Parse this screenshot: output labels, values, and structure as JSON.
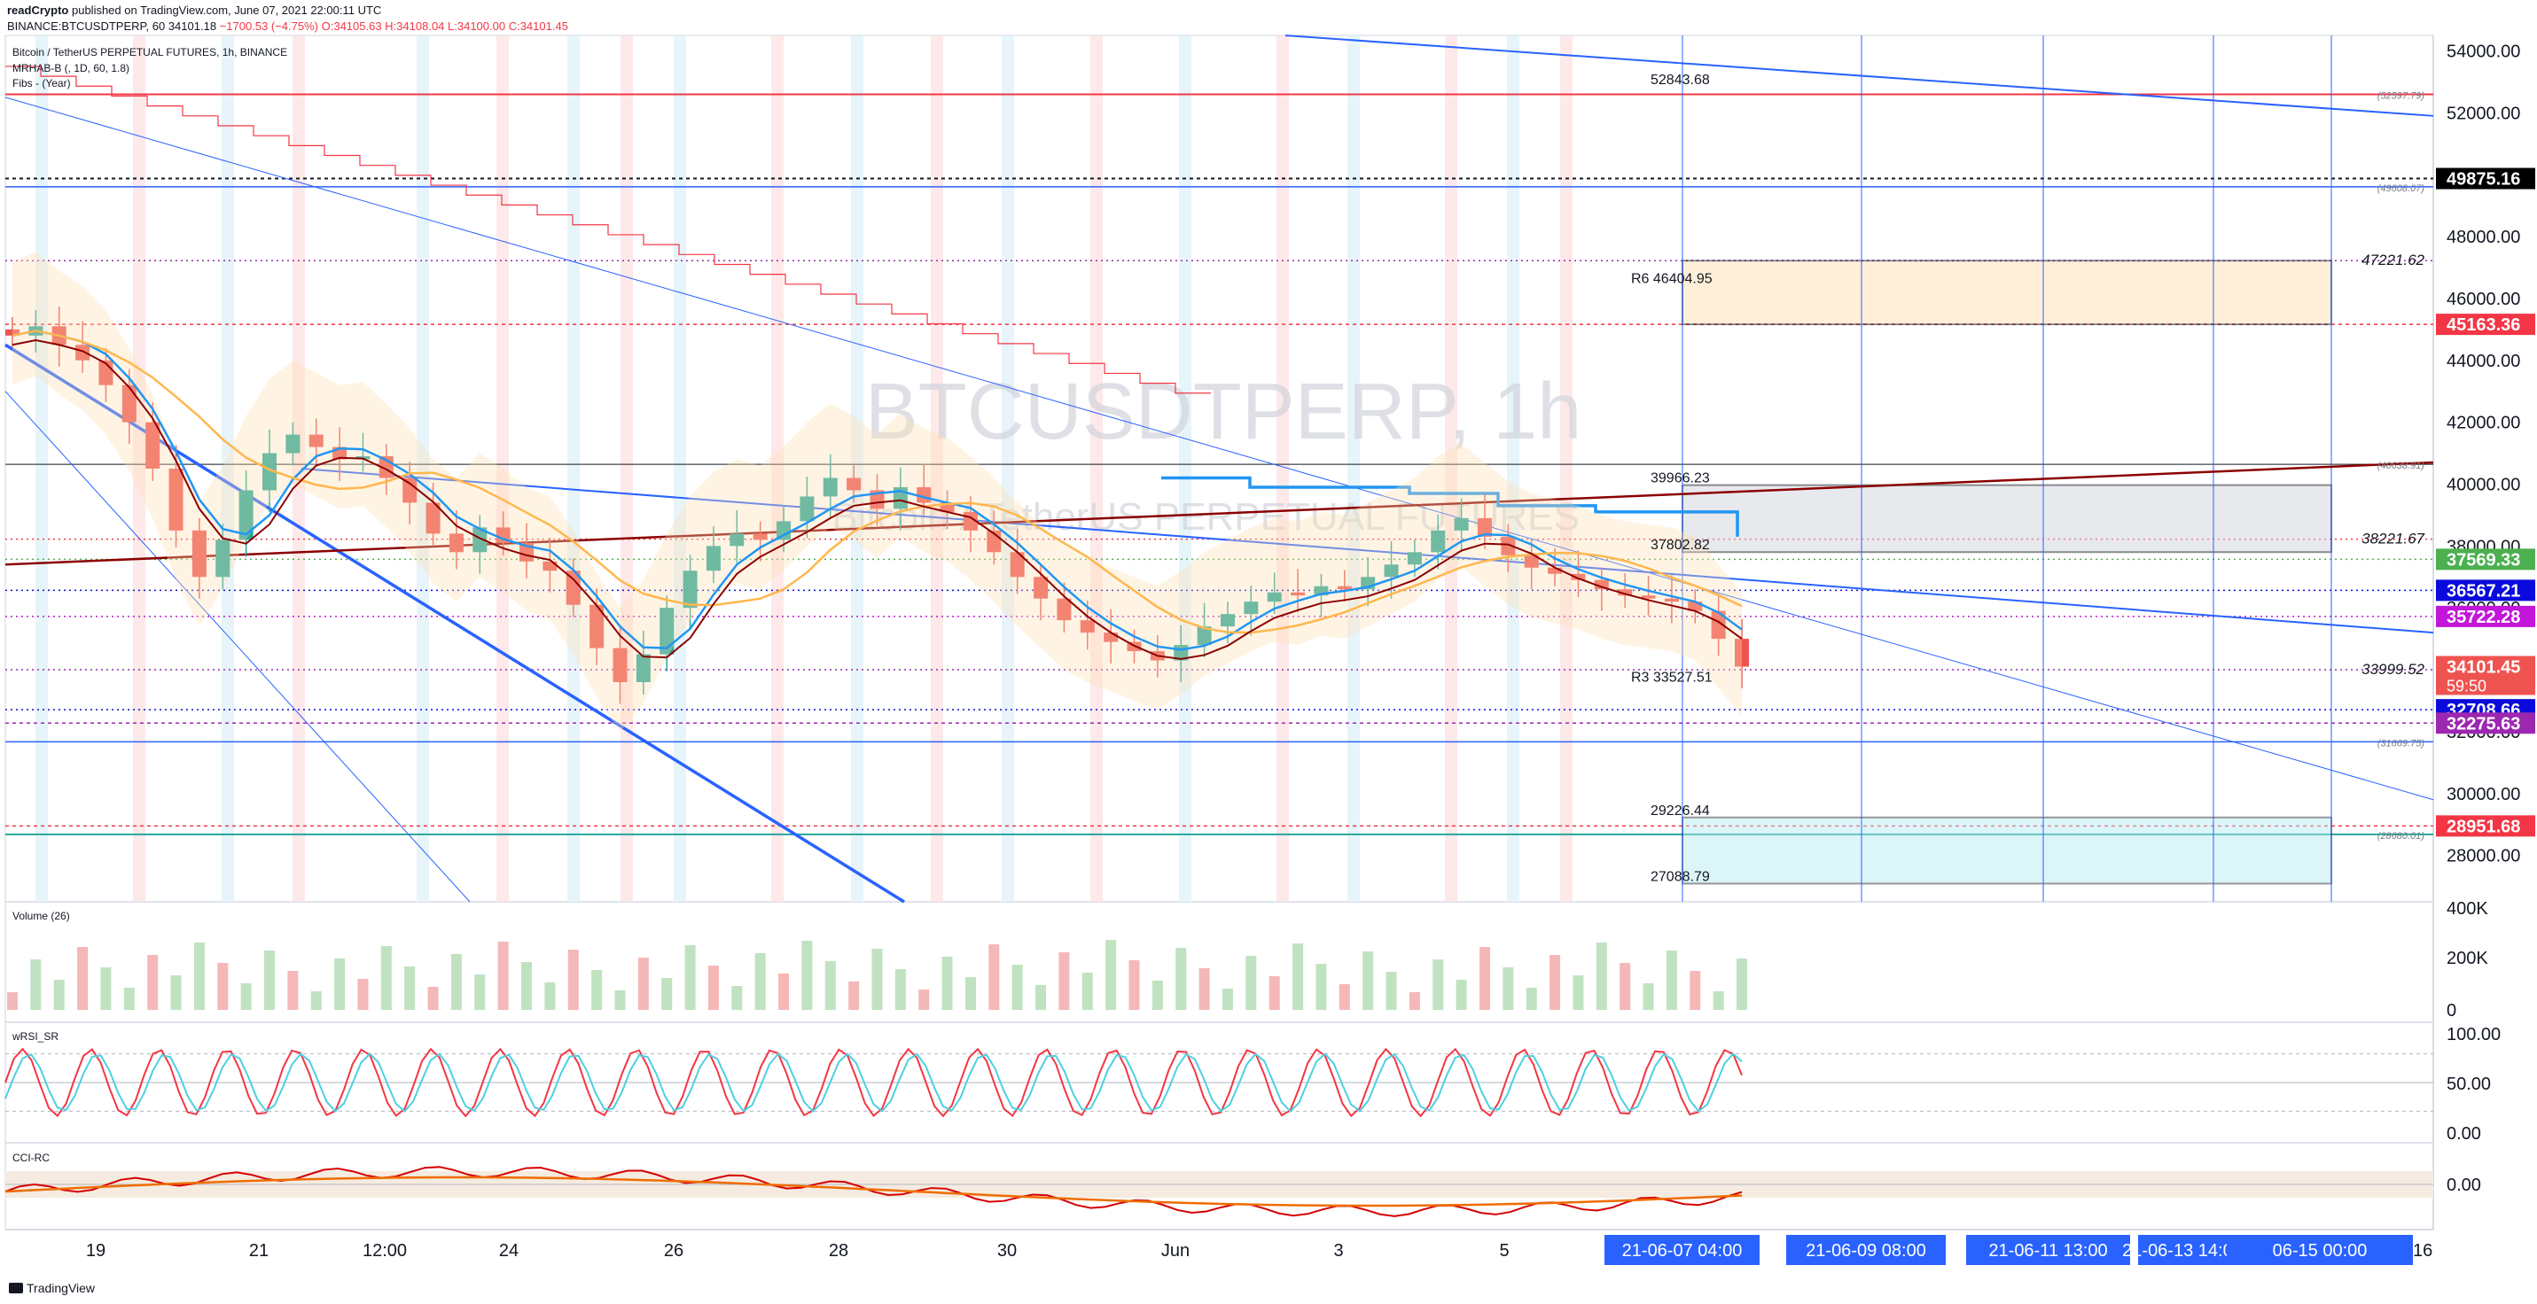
{
  "header": {
    "publisher": "readCrypto",
    "publish_text": "published on TradingView.com, June 07, 2021 22:00:11 UTC",
    "symbol_line": "BINANCE:BTCUSDTPERP, 60",
    "last": "34101.18",
    "change": "−1700.53 (−4.75%)",
    "ohlc": "O:34105.63 H:34108.04 L:34100.00 C:34101.45"
  },
  "legend": {
    "title": "Bitcoin / TetherUS PERPETUAL FUTURES, 1h, BINANCE",
    "indicator1": "MRHAB-B (, 1D, 60, 1.8)",
    "indicator2": "Fibs - (Year)"
  },
  "watermark": {
    "symbol": "BTCUSDTPERP, 1h",
    "name": "Bitcoin / TetherUS PERPETUAL FUTURES"
  },
  "panes": {
    "volume": "Volume (26)",
    "rsi": "wRSI_SR",
    "cci": "CCI-RC"
  },
  "footer": {
    "brand": "TradingView"
  },
  "colors": {
    "up": "#26a69a",
    "down": "#ef5350",
    "blue_line": "#2962ff",
    "red_line": "#f23645",
    "dark_red_line": "#8b0000",
    "box_dark": "#131722"
  },
  "chart_data": {
    "type": "candlestick",
    "symbol": "BTCUSDTPERP",
    "timeframe": "1h",
    "ylim": [
      26500,
      54500
    ],
    "y_ticks": [
      "28000.00",
      "30000.00",
      "32000.00",
      "34000.00",
      "36000.00",
      "38000.00",
      "40000.00",
      "42000.00",
      "44000.00",
      "46000.00",
      "48000.00",
      "50000.00",
      "52000.00",
      "54000.00"
    ],
    "x_ticks": [
      "19",
      "21",
      "12:00",
      "24",
      "26",
      "28",
      "30",
      "Jun",
      "3",
      "5"
    ],
    "time_labels": [
      "21-06-07  04:00",
      "21-06-09  08:00",
      "21-06-11  13:00",
      "21-06-13  14:00",
      "06-15  00:00",
      "16"
    ],
    "price_tags": [
      {
        "value": 49875.16,
        "label": "49875.16",
        "bg": "#000000"
      },
      {
        "value": 45163.36,
        "label": "45163.36",
        "bg": "#f23645"
      },
      {
        "value": 37569.33,
        "label": "37569.33",
        "bg": "#4caf50"
      },
      {
        "value": 36567.21,
        "label": "36567.21",
        "bg": "#0a0adc"
      },
      {
        "value": 35722.28,
        "label": "35722.28",
        "bg": "#c217d8"
      },
      {
        "value": 34101.45,
        "label": "34101.45",
        "sub": "59:50",
        "bg": "#ef5350"
      },
      {
        "value": 32708.66,
        "label": "32708.66",
        "bg": "#0a0adc"
      },
      {
        "value": 32275.63,
        "label": "32275.63",
        "bg": "#9c27b0"
      },
      {
        "value": 28951.68,
        "label": "28951.68",
        "bg": "#f23645"
      }
    ],
    "levels": [
      {
        "value": 52843.68,
        "label": "52843.68"
      },
      {
        "value": 46404.95,
        "label": "R6 46404.95"
      },
      {
        "value": 39966.23,
        "label": "39966.23"
      },
      {
        "value": 37802.82,
        "label": "37802.82"
      },
      {
        "value": 33527.51,
        "label": "R3 33527.51"
      },
      {
        "value": 29226.44,
        "label": "29226.44"
      },
      {
        "value": 27088.79,
        "label": "27088.79"
      }
    ],
    "axis_notes": [
      {
        "value": 52597.79,
        "label": "(52597.79)"
      },
      {
        "value": 49608.07,
        "label": "(49608.07)"
      },
      {
        "value": 47221.62,
        "label": "47221.62"
      },
      {
        "value": 40638.91,
        "label": "(40638.91)"
      },
      {
        "value": 38221.67,
        "label": "38221.67"
      },
      {
        "value": 33999.52,
        "label": "33999.52"
      },
      {
        "value": 31669.75,
        "label": "(31669.75)"
      },
      {
        "value": 28680.01,
        "label": "(28680.01)"
      }
    ],
    "closes": [
      44800,
      45100,
      44500,
      44000,
      43200,
      42000,
      40500,
      38500,
      37000,
      38200,
      39800,
      41000,
      41600,
      41200,
      40800,
      40900,
      40200,
      39400,
      38400,
      37800,
      38600,
      38100,
      37500,
      37200,
      36100,
      34700,
      33600,
      34500,
      36000,
      37200,
      38000,
      38400,
      38200,
      38800,
      39600,
      40200,
      39800,
      39200,
      39900,
      39400,
      39100,
      38500,
      37800,
      37000,
      36300,
      35600,
      35200,
      34900,
      34600,
      34300,
      34800,
      35400,
      35800,
      36200,
      36500,
      36400,
      36700,
      36600,
      37000,
      37400,
      37800,
      38500,
      38900,
      38300,
      37700,
      37300,
      37100,
      36900,
      36600,
      36400,
      36300,
      36200,
      35900,
      35000,
      34100
    ],
    "volume_axis": [
      "400K",
      "200K",
      "0"
    ],
    "rsi_axis": [
      "100.00",
      "50.00",
      "0.00"
    ],
    "cci_axis": [
      "0.00"
    ]
  }
}
